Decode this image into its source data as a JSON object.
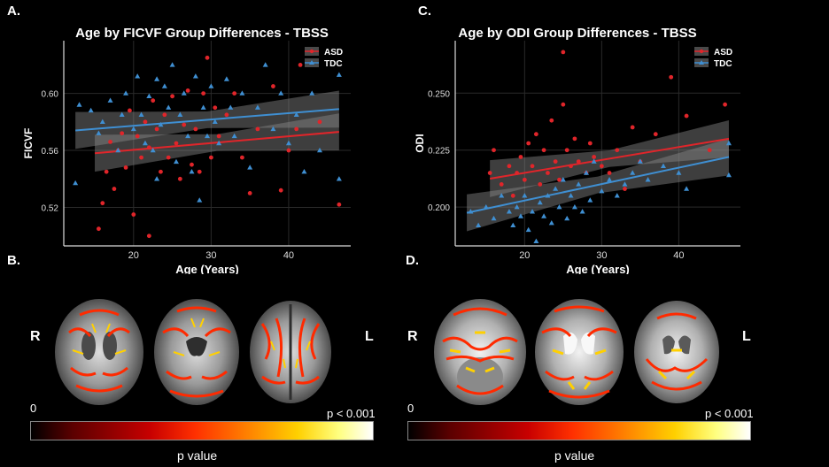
{
  "panels": {
    "a_label": "A.",
    "b_label": "B.",
    "c_label": "C.",
    "d_label": "D."
  },
  "colors": {
    "asd": "#e0252a",
    "tdc": "#3f8fd2",
    "plot_bg": "#000000",
    "grid": "#2a2a2a"
  },
  "chart_data": [
    {
      "type": "scatter",
      "title": "Age by FICVF Group Differences - TBSS",
      "xlabel": "Age (Years)",
      "ylabel": "FICVF",
      "xlim": [
        11,
        48
      ],
      "ylim": [
        0.493,
        0.637
      ],
      "x_ticks": [
        20,
        30,
        40
      ],
      "y_ticks": [
        0.52,
        0.56,
        0.6
      ],
      "y_tick_labels": [
        "0.52",
        "0.56",
        "0.60"
      ],
      "legend_position": "top-right",
      "grid": true,
      "series": [
        {
          "name": "ASD",
          "marker": "circle",
          "points": [
            [
              15.5,
              0.505
            ],
            [
              16,
              0.523
            ],
            [
              16.5,
              0.545
            ],
            [
              17,
              0.566
            ],
            [
              17.5,
              0.533
            ],
            [
              18,
              0.56
            ],
            [
              18.5,
              0.572
            ],
            [
              19,
              0.548
            ],
            [
              19.5,
              0.588
            ],
            [
              20,
              0.515
            ],
            [
              20.5,
              0.57
            ],
            [
              21,
              0.555
            ],
            [
              21.5,
              0.58
            ],
            [
              22,
              0.562
            ],
            [
              22,
              0.5
            ],
            [
              22.5,
              0.595
            ],
            [
              23,
              0.575
            ],
            [
              23.5,
              0.545
            ],
            [
              24,
              0.585
            ],
            [
              24.5,
              0.555
            ],
            [
              25,
              0.598
            ],
            [
              25.5,
              0.565
            ],
            [
              26,
              0.54
            ],
            [
              26.5,
              0.578
            ],
            [
              27,
              0.602
            ],
            [
              27.5,
              0.55
            ],
            [
              28,
              0.575
            ],
            [
              28.5,
              0.545
            ],
            [
              29,
              0.6
            ],
            [
              29.5,
              0.625
            ],
            [
              30,
              0.555
            ],
            [
              30.5,
              0.59
            ],
            [
              31,
              0.57
            ],
            [
              32,
              0.585
            ],
            [
              33,
              0.6
            ],
            [
              34,
              0.555
            ],
            [
              35,
              0.53
            ],
            [
              36,
              0.575
            ],
            [
              38,
              0.605
            ],
            [
              39,
              0.532
            ],
            [
              40,
              0.56
            ],
            [
              41,
              0.575
            ],
            [
              41.5,
              0.62
            ],
            [
              44,
              0.58
            ],
            [
              46.5,
              0.522
            ]
          ],
          "fit_start": [
            15,
            0.558
          ],
          "fit_end": [
            46.5,
            0.573
          ]
        },
        {
          "name": "TDC",
          "marker": "triangle",
          "points": [
            [
              12.5,
              0.537
            ],
            [
              13,
              0.592
            ],
            [
              14.5,
              0.588
            ],
            [
              15.5,
              0.572
            ],
            [
              16,
              0.58
            ],
            [
              17,
              0.595
            ],
            [
              18,
              0.56
            ],
            [
              18.5,
              0.585
            ],
            [
              19,
              0.6
            ],
            [
              20,
              0.575
            ],
            [
              20.5,
              0.612
            ],
            [
              21,
              0.585
            ],
            [
              21.5,
              0.565
            ],
            [
              22,
              0.598
            ],
            [
              22.5,
              0.56
            ],
            [
              23,
              0.54
            ],
            [
              23,
              0.61
            ],
            [
              23.5,
              0.578
            ],
            [
              24,
              0.605
            ],
            [
              24.5,
              0.59
            ],
            [
              25,
              0.62
            ],
            [
              25.5,
              0.552
            ],
            [
              26,
              0.585
            ],
            [
              26.5,
              0.6
            ],
            [
              27,
              0.57
            ],
            [
              27.5,
              0.545
            ],
            [
              28,
              0.612
            ],
            [
              28.5,
              0.525
            ],
            [
              29,
              0.59
            ],
            [
              29.5,
              0.57
            ],
            [
              30,
              0.605
            ],
            [
              30.5,
              0.58
            ],
            [
              31,
              0.565
            ],
            [
              32,
              0.61
            ],
            [
              32.5,
              0.59
            ],
            [
              33,
              0.57
            ],
            [
              34,
              0.6
            ],
            [
              35,
              0.548
            ],
            [
              36,
              0.59
            ],
            [
              37,
              0.62
            ],
            [
              38,
              0.575
            ],
            [
              39,
              0.6
            ],
            [
              40,
              0.565
            ],
            [
              41,
              0.585
            ],
            [
              42,
              0.545
            ],
            [
              43,
              0.6
            ],
            [
              44,
              0.56
            ],
            [
              46.5,
              0.613
            ],
            [
              46.5,
              0.54
            ]
          ],
          "fit_start": [
            12.5,
            0.574
          ],
          "fit_end": [
            46.5,
            0.589
          ]
        }
      ]
    },
    {
      "type": "scatter",
      "title": "Age by ODI Group Differences - TBSS",
      "xlabel": "Age (Years)",
      "ylabel": "ODI",
      "xlim": [
        11,
        48
      ],
      "ylim": [
        0.183,
        0.273
      ],
      "x_ticks": [
        20,
        30,
        40
      ],
      "y_ticks": [
        0.2,
        0.225,
        0.25
      ],
      "y_tick_labels": [
        "0.200",
        "0.225",
        "0.250"
      ],
      "legend_position": "top-right",
      "grid": true,
      "series": [
        {
          "name": "ASD",
          "marker": "circle",
          "points": [
            [
              15.5,
              0.215
            ],
            [
              16,
              0.225
            ],
            [
              17,
              0.21
            ],
            [
              18,
              0.218
            ],
            [
              18.5,
              0.205
            ],
            [
              19,
              0.215
            ],
            [
              19.5,
              0.222
            ],
            [
              20,
              0.212
            ],
            [
              20.5,
              0.228
            ],
            [
              21,
              0.218
            ],
            [
              21.5,
              0.232
            ],
            [
              22,
              0.21
            ],
            [
              22.5,
              0.225
            ],
            [
              23,
              0.215
            ],
            [
              23.5,
              0.238
            ],
            [
              24,
              0.22
            ],
            [
              24.5,
              0.212
            ],
            [
              25,
              0.245
            ],
            [
              25,
              0.268
            ],
            [
              25.5,
              0.225
            ],
            [
              26,
              0.218
            ],
            [
              26.5,
              0.23
            ],
            [
              27,
              0.22
            ],
            [
              28,
              0.215
            ],
            [
              28.5,
              0.228
            ],
            [
              29,
              0.222
            ],
            [
              30,
              0.218
            ],
            [
              31,
              0.215
            ],
            [
              32,
              0.225
            ],
            [
              33,
              0.208
            ],
            [
              34,
              0.235
            ],
            [
              35,
              0.22
            ],
            [
              37,
              0.232
            ],
            [
              39,
              0.257
            ],
            [
              41,
              0.24
            ],
            [
              44,
              0.225
            ],
            [
              46,
              0.245
            ]
          ],
          "fit_start": [
            15.5,
            0.2125
          ],
          "fit_end": [
            46.5,
            0.23
          ]
        },
        {
          "name": "TDC",
          "marker": "triangle",
          "points": [
            [
              13,
              0.198
            ],
            [
              14,
              0.192
            ],
            [
              15,
              0.2
            ],
            [
              16,
              0.195
            ],
            [
              17,
              0.205
            ],
            [
              18,
              0.198
            ],
            [
              18.5,
              0.192
            ],
            [
              19,
              0.2
            ],
            [
              19.5,
              0.196
            ],
            [
              20,
              0.205
            ],
            [
              20.5,
              0.19
            ],
            [
              21,
              0.198
            ],
            [
              21.5,
              0.185
            ],
            [
              22,
              0.202
            ],
            [
              22.5,
              0.196
            ],
            [
              23,
              0.205
            ],
            [
              23.5,
              0.193
            ],
            [
              24,
              0.208
            ],
            [
              24.5,
              0.2
            ],
            [
              25,
              0.212
            ],
            [
              25.5,
              0.195
            ],
            [
              26,
              0.205
            ],
            [
              26.5,
              0.2
            ],
            [
              27,
              0.21
            ],
            [
              27.5,
              0.198
            ],
            [
              28,
              0.215
            ],
            [
              28.5,
              0.203
            ],
            [
              29,
              0.22
            ],
            [
              30,
              0.207
            ],
            [
              31,
              0.212
            ],
            [
              32,
              0.205
            ],
            [
              33,
              0.21
            ],
            [
              34,
              0.215
            ],
            [
              35,
              0.22
            ],
            [
              36,
              0.212
            ],
            [
              38,
              0.218
            ],
            [
              40,
              0.215
            ],
            [
              41,
              0.208
            ],
            [
              46.5,
              0.228
            ],
            [
              46.5,
              0.214
            ]
          ],
          "fit_start": [
            12.5,
            0.1975
          ],
          "fit_end": [
            46.5,
            0.222
          ]
        }
      ]
    }
  ],
  "brain_panels": {
    "left": {
      "right_label": "R",
      "left_label": "L",
      "scale_min": "0",
      "scale_max": "p < 0.001",
      "scale_title": "p value"
    },
    "right": {
      "right_label": "R",
      "left_label": "L",
      "scale_min": "0",
      "scale_max": "p < 0.001",
      "scale_title": "p value"
    }
  }
}
